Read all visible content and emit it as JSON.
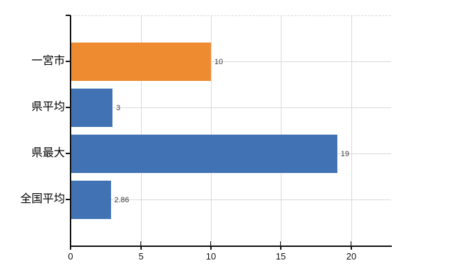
{
  "chart_data": {
    "type": "bar",
    "orientation": "horizontal",
    "title": "",
    "xlabel": "",
    "ylabel": "",
    "categories": [
      "一宮市",
      "県平均",
      "県最大",
      "全国平均"
    ],
    "values": [
      10,
      3,
      19,
      2.86
    ],
    "value_labels": [
      "10",
      "3",
      "19",
      "2.86"
    ],
    "bar_colors": [
      "#ee8b31",
      "#4173b4",
      "#4173b4",
      "#4173b4"
    ],
    "x_ticks": [
      0,
      5,
      10,
      15,
      20
    ],
    "x_tick_labels": [
      "0",
      "5",
      "10",
      "15",
      "20"
    ],
    "xlim": [
      0,
      22.84
    ],
    "grid": true,
    "legend": false,
    "colors": {
      "highlight_bar": "#ee8b31",
      "default_bar": "#4173b4",
      "gridline": "#d9d9d9",
      "axis": "#111111",
      "value_text": "#404040",
      "label_text": "#000000",
      "background": "#ffffff"
    }
  }
}
